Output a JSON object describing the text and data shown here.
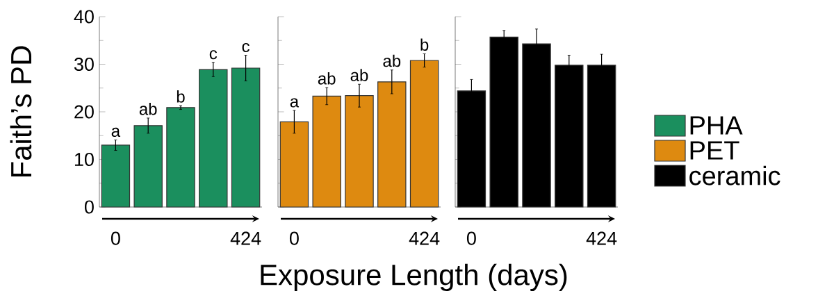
{
  "chart_data": [
    {
      "type": "bar",
      "ylabel": "Faith’s PD",
      "categories": [
        "0",
        null,
        null,
        null,
        "424"
      ],
      "ylim": [
        0,
        40
      ],
      "yticks": [
        0,
        10,
        20,
        30,
        40
      ],
      "legend": "right",
      "series": [
        {
          "name": "PHA",
          "color": "#1b8f5e",
          "values": [
            13.0,
            17.1,
            20.9,
            28.9,
            29.2
          ],
          "errors": [
            1.1,
            1.6,
            0.4,
            1.5,
            2.7
          ],
          "value_labels": [
            "a",
            "ab",
            "b",
            "c",
            "c"
          ]
        }
      ]
    },
    {
      "type": "bar",
      "categories": [
        "0",
        null,
        null,
        null,
        "424"
      ],
      "ylim": [
        0,
        40
      ],
      "yticks": [
        0,
        10,
        20,
        30,
        40
      ],
      "legend": "right",
      "tick_labels": "x",
      "series": [
        {
          "name": "PET",
          "color": "#de8a10",
          "values": [
            17.9,
            23.3,
            23.4,
            26.3,
            30.8
          ],
          "errors": [
            2.4,
            1.8,
            2.4,
            2.5,
            1.4
          ],
          "value_labels": [
            "a",
            "ab",
            "ab",
            "ab",
            "b"
          ]
        }
      ]
    },
    {
      "type": "bar",
      "xlabel": "Exposure Length (days)",
      "categories": [
        "0",
        null,
        null,
        null,
        "424"
      ],
      "ylim": [
        0,
        40
      ],
      "yticks": [
        0,
        10,
        20,
        30,
        40
      ],
      "legend": "right",
      "tick_labels": "x",
      "series": [
        {
          "name": "ceramic",
          "color": "#000000",
          "values": [
            24.4,
            35.7,
            34.3,
            29.8,
            29.8
          ],
          "errors": [
            2.4,
            1.4,
            3.1,
            2.1,
            2.3
          ]
        }
      ]
    }
  ]
}
